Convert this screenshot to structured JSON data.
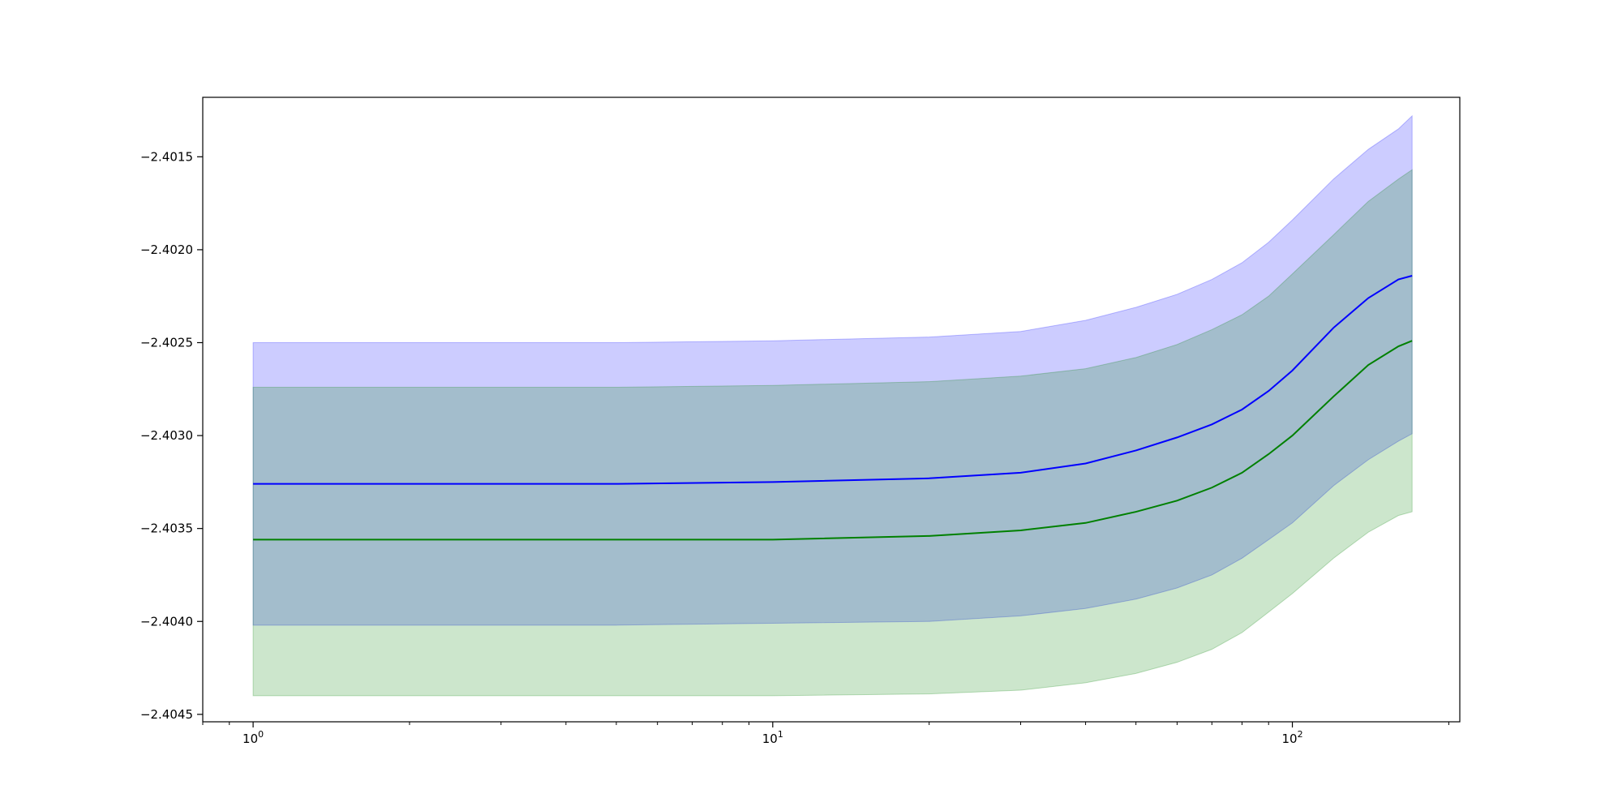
{
  "chart_data": {
    "type": "area",
    "title": "",
    "xlabel": "",
    "ylabel": "",
    "xscale": "log",
    "xlim": [
      0.8,
      210
    ],
    "ylim": [
      -2.40454,
      -2.40118
    ],
    "grid": false,
    "legend": "none",
    "x_ticks": [
      {
        "value": 1,
        "base": "10",
        "exp": "0"
      },
      {
        "value": 10,
        "base": "10",
        "exp": "1"
      },
      {
        "value": 100,
        "base": "10",
        "exp": "2"
      }
    ],
    "y_ticks": [
      {
        "value": -2.4015,
        "label": "−2.4015"
      },
      {
        "value": -2.402,
        "label": "−2.4020"
      },
      {
        "value": -2.4025,
        "label": "−2.4025"
      },
      {
        "value": -2.403,
        "label": "−2.4030"
      },
      {
        "value": -2.4035,
        "label": "−2.4035"
      },
      {
        "value": -2.404,
        "label": "−2.4040"
      },
      {
        "value": -2.4045,
        "label": "−2.4045"
      }
    ],
    "x": [
      1,
      2,
      5,
      10,
      20,
      30,
      40,
      50,
      60,
      70,
      80,
      90,
      100,
      120,
      140,
      160,
      170
    ],
    "series": [
      {
        "color": "#0000ff",
        "band_color": "#0000ff",
        "band_opacity": 0.2,
        "mean": [
          -2.40326,
          -2.40326,
          -2.40326,
          -2.40325,
          -2.40323,
          -2.4032,
          -2.40315,
          -2.40308,
          -2.40301,
          -2.40294,
          -2.40286,
          -2.40276,
          -2.40265,
          -2.40242,
          -2.40226,
          -2.40216,
          -2.40214
        ],
        "upper": [
          -2.4025,
          -2.4025,
          -2.4025,
          -2.40249,
          -2.40247,
          -2.40244,
          -2.40238,
          -2.40231,
          -2.40224,
          -2.40216,
          -2.40207,
          -2.40196,
          -2.40184,
          -2.40162,
          -2.40146,
          -2.40135,
          -2.40128
        ],
        "lower": [
          -2.40402,
          -2.40402,
          -2.40402,
          -2.40401,
          -2.404,
          -2.40397,
          -2.40393,
          -2.40388,
          -2.40382,
          -2.40375,
          -2.40366,
          -2.40356,
          -2.40347,
          -2.40327,
          -2.40313,
          -2.40303,
          -2.40299
        ]
      },
      {
        "color": "#008000",
        "band_color": "#008000",
        "band_opacity": 0.2,
        "mean": [
          -2.40356,
          -2.40356,
          -2.40356,
          -2.40356,
          -2.40354,
          -2.40351,
          -2.40347,
          -2.40341,
          -2.40335,
          -2.40328,
          -2.4032,
          -2.4031,
          -2.403,
          -2.40279,
          -2.40262,
          -2.40252,
          -2.40249
        ],
        "upper": [
          -2.40274,
          -2.40274,
          -2.40274,
          -2.40273,
          -2.40271,
          -2.40268,
          -2.40264,
          -2.40258,
          -2.40251,
          -2.40243,
          -2.40235,
          -2.40225,
          -2.40213,
          -2.40192,
          -2.40174,
          -2.40162,
          -2.40157
        ],
        "lower": [
          -2.4044,
          -2.4044,
          -2.4044,
          -2.4044,
          -2.40439,
          -2.40437,
          -2.40433,
          -2.40428,
          -2.40422,
          -2.40415,
          -2.40406,
          -2.40395,
          -2.40385,
          -2.40366,
          -2.40352,
          -2.40343,
          -2.40341
        ]
      }
    ]
  }
}
